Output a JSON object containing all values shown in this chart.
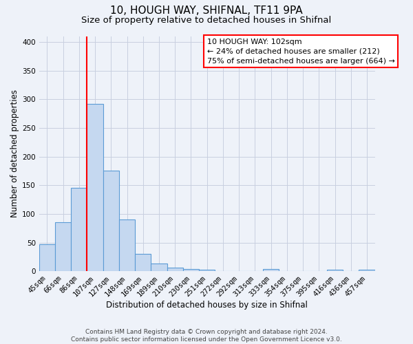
{
  "title": "10, HOUGH WAY, SHIFNAL, TF11 9PA",
  "subtitle": "Size of property relative to detached houses in Shifnal",
  "xlabel": "Distribution of detached houses by size in Shifnal",
  "ylabel": "Number of detached properties",
  "categories": [
    "45sqm",
    "66sqm",
    "86sqm",
    "107sqm",
    "127sqm",
    "148sqm",
    "169sqm",
    "189sqm",
    "210sqm",
    "230sqm",
    "251sqm",
    "272sqm",
    "292sqm",
    "313sqm",
    "333sqm",
    "354sqm",
    "375sqm",
    "395sqm",
    "416sqm",
    "436sqm",
    "457sqm"
  ],
  "values": [
    47,
    86,
    145,
    292,
    176,
    91,
    30,
    14,
    6,
    4,
    3,
    0,
    0,
    0,
    4,
    0,
    0,
    0,
    3,
    0,
    3
  ],
  "bar_color": "#c5d8f0",
  "bar_edge_color": "#5b9bd5",
  "vline_x": 2.5,
  "vline_color": "red",
  "ylim": [
    0,
    410
  ],
  "yticks": [
    0,
    50,
    100,
    150,
    200,
    250,
    300,
    350,
    400
  ],
  "annotation_title": "10 HOUGH WAY: 102sqm",
  "annotation_line1": "← 24% of detached houses are smaller (212)",
  "annotation_line2": "75% of semi-detached houses are larger (664) →",
  "footer_line1": "Contains HM Land Registry data © Crown copyright and database right 2024.",
  "footer_line2": "Contains public sector information licensed under the Open Government Licence v3.0.",
  "bg_color": "#eef2f9",
  "grid_color": "#c8cfe0",
  "title_fontsize": 11,
  "subtitle_fontsize": 9.5,
  "axis_label_fontsize": 8.5,
  "tick_fontsize": 7.5,
  "annotation_fontsize": 8,
  "footer_fontsize": 6.5
}
